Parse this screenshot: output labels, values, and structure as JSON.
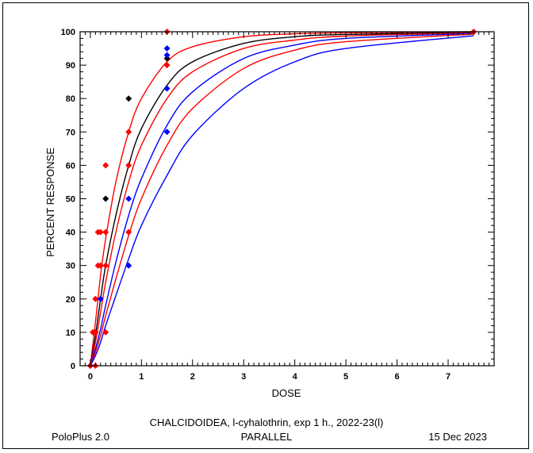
{
  "chart_data": {
    "type": "scatter",
    "xlabel": "DOSE",
    "ylabel": "PERCENT  RESPONSE",
    "xlim": [
      -0.2,
      7.9
    ],
    "ylim": [
      0,
      100
    ],
    "x_ticks": [
      0,
      1,
      2,
      3,
      4,
      5,
      6,
      7
    ],
    "y_ticks": [
      0,
      10,
      20,
      30,
      40,
      50,
      60,
      70,
      80,
      90,
      100
    ],
    "grid": false,
    "series": [
      {
        "color": "#ff0000",
        "points": [
          [
            0.05,
            10
          ],
          [
            0.1,
            20
          ],
          [
            0.1,
            10
          ],
          [
            0.15,
            30
          ],
          [
            0.15,
            40
          ],
          [
            0.2,
            30
          ],
          [
            0.3,
            60
          ],
          [
            0.3,
            40
          ],
          [
            0.75,
            60
          ],
          [
            1.5,
            100
          ],
          [
            7.5,
            100
          ]
        ],
        "curve": [
          [
            0.0,
            0
          ],
          [
            0.1,
            13
          ],
          [
            0.2,
            27
          ],
          [
            0.3,
            38
          ],
          [
            0.5,
            55
          ],
          [
            0.75,
            70
          ],
          [
            1.0,
            80
          ],
          [
            1.5,
            91
          ],
          [
            2.0,
            95.5
          ],
          [
            3.0,
            98.5
          ],
          [
            4.0,
            99.4
          ],
          [
            5.0,
            99.7
          ],
          [
            7.5,
            100
          ]
        ]
      },
      {
        "color": "#000000",
        "points": [
          [
            0.1,
            10
          ],
          [
            0.3,
            50
          ],
          [
            0.75,
            80
          ],
          [
            1.5,
            92
          ]
        ],
        "curve": [
          [
            0.0,
            0
          ],
          [
            0.1,
            9
          ],
          [
            0.2,
            20
          ],
          [
            0.3,
            30
          ],
          [
            0.5,
            45
          ],
          [
            0.75,
            60
          ],
          [
            1.0,
            71
          ],
          [
            1.5,
            84
          ],
          [
            2.0,
            91
          ],
          [
            3.0,
            96.5
          ],
          [
            4.0,
            98.5
          ],
          [
            5.0,
            99.2
          ],
          [
            7.5,
            99.8
          ]
        ]
      },
      {
        "color": "#ff0000",
        "points": [
          [
            0.0,
            0
          ],
          [
            0.05,
            10
          ],
          [
            0.1,
            10
          ],
          [
            0.2,
            40
          ],
          [
            0.3,
            30
          ],
          [
            0.3,
            10
          ],
          [
            0.75,
            70
          ],
          [
            0.75,
            40
          ],
          [
            1.5,
            90
          ]
        ],
        "curve": [
          [
            0.0,
            0
          ],
          [
            0.1,
            7
          ],
          [
            0.2,
            16
          ],
          [
            0.3,
            25
          ],
          [
            0.5,
            40
          ],
          [
            0.75,
            55
          ],
          [
            1.0,
            66
          ],
          [
            1.5,
            80
          ],
          [
            2.0,
            88
          ],
          [
            3.0,
            95
          ],
          [
            4.0,
            97.5
          ],
          [
            5.0,
            98.7
          ],
          [
            7.5,
            99.7
          ]
        ]
      },
      {
        "color": "#0000ff",
        "points": [
          [
            0.0,
            0
          ],
          [
            0.2,
            20
          ],
          [
            0.75,
            30
          ],
          [
            0.75,
            50
          ],
          [
            1.5,
            70
          ],
          [
            1.5,
            83
          ],
          [
            1.5,
            93
          ],
          [
            1.5,
            95
          ]
        ],
        "curve": [
          [
            0.0,
            0
          ],
          [
            0.1,
            5
          ],
          [
            0.2,
            11
          ],
          [
            0.3,
            18
          ],
          [
            0.5,
            31
          ],
          [
            0.75,
            45
          ],
          [
            1.0,
            56
          ],
          [
            1.5,
            72
          ],
          [
            2.0,
            82
          ],
          [
            3.0,
            92
          ],
          [
            4.0,
            96
          ],
          [
            5.0,
            98
          ],
          [
            7.5,
            99.5
          ]
        ]
      },
      {
        "color": "#ff0000",
        "points": [
          [
            0.0,
            0
          ],
          [
            0.1,
            0
          ]
        ],
        "curve": [
          [
            0.0,
            0
          ],
          [
            0.1,
            4
          ],
          [
            0.2,
            9
          ],
          [
            0.3,
            15
          ],
          [
            0.5,
            26
          ],
          [
            0.75,
            39
          ],
          [
            1.0,
            50
          ],
          [
            1.5,
            66
          ],
          [
            2.0,
            77
          ],
          [
            3.0,
            89
          ],
          [
            4.0,
            94.5
          ],
          [
            5.0,
            97
          ],
          [
            7.5,
            99.3
          ]
        ]
      },
      {
        "color": "#0000ff",
        "points": [],
        "curve": [
          [
            0.0,
            0
          ],
          [
            0.1,
            3
          ],
          [
            0.2,
            7
          ],
          [
            0.3,
            12
          ],
          [
            0.5,
            21
          ],
          [
            0.75,
            32
          ],
          [
            1.0,
            42
          ],
          [
            1.5,
            57
          ],
          [
            2.0,
            69
          ],
          [
            3.0,
            83
          ],
          [
            4.0,
            91
          ],
          [
            5.0,
            95
          ],
          [
            7.5,
            98.8
          ]
        ]
      }
    ]
  },
  "footer": {
    "title": "CHALCIDOIDEA, l-cyhalothrin, exp 1 h., 2022-23(l)",
    "software": "PoloPlus 2.0",
    "model": "PARALLEL",
    "date": "15 Dec 2023"
  }
}
